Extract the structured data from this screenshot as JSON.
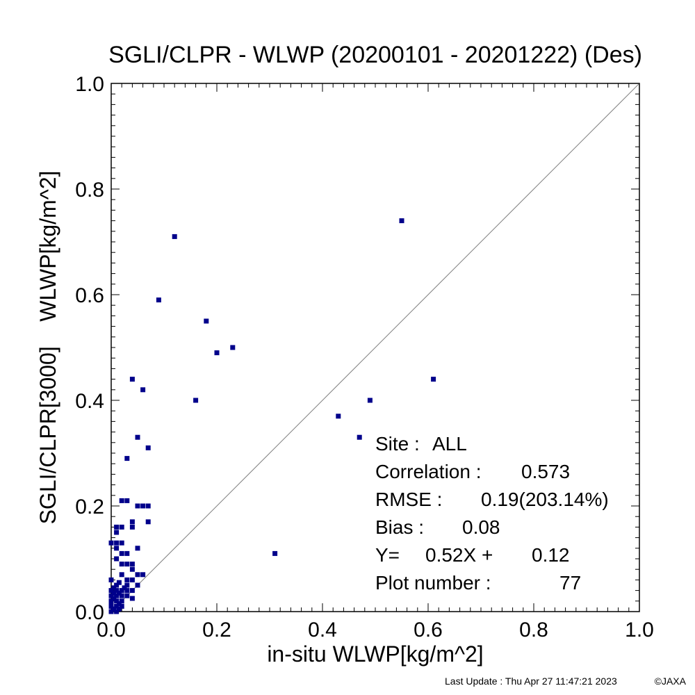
{
  "chart_data": {
    "type": "scatter",
    "title": "SGLI/CLPR - WLWP (20200101 - 20201222) (Des)",
    "xlabel": "in-situ WLWP[kg/m^2]",
    "ylabel": "SGLI/CLPR[3000]    WLWP[kg/m^2]",
    "xlim": [
      0.0,
      1.0
    ],
    "ylim": [
      0.0,
      1.0
    ],
    "x_ticks": [
      0.0,
      0.2,
      0.4,
      0.6,
      0.8,
      1.0
    ],
    "y_ticks": [
      0.0,
      0.2,
      0.4,
      0.6,
      0.8,
      1.0
    ],
    "x_tick_labels": [
      "0.0",
      "0.2",
      "0.4",
      "0.6",
      "0.8",
      "1.0"
    ],
    "y_tick_labels": [
      "0.0",
      "0.2",
      "0.4",
      "0.6",
      "0.8",
      "1.0"
    ],
    "grid": false,
    "reference_line": "1:1 diagonal",
    "marker_color": "#00008b",
    "line_color": "#808080",
    "stats": [
      {
        "label": "Site :",
        "value": "ALL"
      },
      {
        "label": "Correlation :",
        "value": "0.573"
      },
      {
        "label": "RMSE :",
        "value": "0.19(203.14%)"
      },
      {
        "label": "Bias :",
        "value": "0.08"
      },
      {
        "label": "Y=",
        "value": "0.52X +",
        "value2": "0.12"
      },
      {
        "label": "Plot number :",
        "value": "77"
      }
    ],
    "points": [
      {
        "x": 0.55,
        "y": 0.74
      },
      {
        "x": 0.12,
        "y": 0.71
      },
      {
        "x": 0.09,
        "y": 0.59
      },
      {
        "x": 0.18,
        "y": 0.55
      },
      {
        "x": 0.23,
        "y": 0.5
      },
      {
        "x": 0.2,
        "y": 0.49
      },
      {
        "x": 0.04,
        "y": 0.44
      },
      {
        "x": 0.06,
        "y": 0.42
      },
      {
        "x": 0.16,
        "y": 0.4
      },
      {
        "x": 0.61,
        "y": 0.44
      },
      {
        "x": 0.49,
        "y": 0.4
      },
      {
        "x": 0.43,
        "y": 0.37
      },
      {
        "x": 0.47,
        "y": 0.33
      },
      {
        "x": 0.05,
        "y": 0.33
      },
      {
        "x": 0.07,
        "y": 0.31
      },
      {
        "x": 0.03,
        "y": 0.29
      },
      {
        "x": 0.31,
        "y": 0.11
      },
      {
        "x": 0.02,
        "y": 0.21
      },
      {
        "x": 0.03,
        "y": 0.21
      },
      {
        "x": 0.05,
        "y": 0.2
      },
      {
        "x": 0.06,
        "y": 0.2
      },
      {
        "x": 0.07,
        "y": 0.2
      },
      {
        "x": 0.07,
        "y": 0.17
      },
      {
        "x": 0.04,
        "y": 0.17
      },
      {
        "x": 0.04,
        "y": 0.16
      },
      {
        "x": 0.01,
        "y": 0.16
      },
      {
        "x": 0.02,
        "y": 0.16
      },
      {
        "x": 0.01,
        "y": 0.15
      },
      {
        "x": 0.0,
        "y": 0.13
      },
      {
        "x": 0.01,
        "y": 0.13
      },
      {
        "x": 0.02,
        "y": 0.13
      },
      {
        "x": 0.05,
        "y": 0.12
      },
      {
        "x": 0.01,
        "y": 0.12
      },
      {
        "x": 0.02,
        "y": 0.11
      },
      {
        "x": 0.03,
        "y": 0.11
      },
      {
        "x": 0.01,
        "y": 0.1
      },
      {
        "x": 0.03,
        "y": 0.09
      },
      {
        "x": 0.04,
        "y": 0.09
      },
      {
        "x": 0.02,
        "y": 0.09
      },
      {
        "x": 0.04,
        "y": 0.08
      },
      {
        "x": 0.05,
        "y": 0.07
      },
      {
        "x": 0.06,
        "y": 0.07
      },
      {
        "x": 0.02,
        "y": 0.07
      },
      {
        "x": 0.03,
        "y": 0.06
      },
      {
        "x": 0.0,
        "y": 0.06
      },
      {
        "x": 0.04,
        "y": 0.06
      },
      {
        "x": 0.01,
        "y": 0.05
      },
      {
        "x": 0.03,
        "y": 0.05
      },
      {
        "x": 0.05,
        "y": 0.05
      },
      {
        "x": 0.0,
        "y": 0.04
      },
      {
        "x": 0.01,
        "y": 0.04
      },
      {
        "x": 0.02,
        "y": 0.04
      },
      {
        "x": 0.04,
        "y": 0.04
      },
      {
        "x": 0.0,
        "y": 0.03
      },
      {
        "x": 0.01,
        "y": 0.03
      },
      {
        "x": 0.02,
        "y": 0.03
      },
      {
        "x": 0.03,
        "y": 0.03
      },
      {
        "x": 0.04,
        "y": 0.025
      },
      {
        "x": 0.0,
        "y": 0.02
      },
      {
        "x": 0.01,
        "y": 0.02
      },
      {
        "x": 0.02,
        "y": 0.02
      },
      {
        "x": 0.0,
        "y": 0.01
      },
      {
        "x": 0.01,
        "y": 0.01
      },
      {
        "x": 0.0,
        "y": 0.0
      },
      {
        "x": 0.01,
        "y": 0.0
      },
      {
        "x": 0.02,
        "y": 0.01
      },
      {
        "x": 0.0,
        "y": 0.015
      },
      {
        "x": 0.03,
        "y": 0.04
      },
      {
        "x": 0.005,
        "y": 0.005
      },
      {
        "x": 0.005,
        "y": 0.025
      },
      {
        "x": 0.015,
        "y": 0.005
      },
      {
        "x": 0.015,
        "y": 0.035
      },
      {
        "x": 0.005,
        "y": 0.045
      },
      {
        "x": 0.015,
        "y": 0.055
      },
      {
        "x": 0.025,
        "y": 0.045
      },
      {
        "x": 0.005,
        "y": 0.035
      },
      {
        "x": 0.015,
        "y": 0.015
      }
    ]
  },
  "footer": {
    "last_update": "Last Update : Thu Apr 27 11:47:21 2023",
    "copyright": "©JAXA"
  }
}
